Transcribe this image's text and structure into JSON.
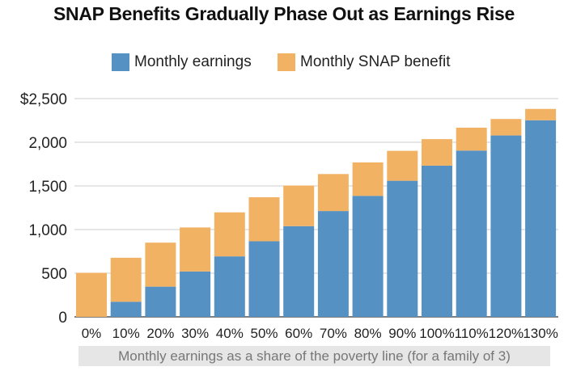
{
  "chart_data": {
    "type": "bar",
    "stacked": true,
    "title": "SNAP Benefits Gradually Phase Out as Earnings Rise",
    "xlabel": "Monthly earnings as a share of the poverty line (for a family of 3)",
    "ylabel": "",
    "categories": [
      "0%",
      "10%",
      "20%",
      "30%",
      "40%",
      "50%",
      "60%",
      "70%",
      "80%",
      "90%",
      "100%",
      "110%",
      "120%",
      "130%"
    ],
    "series": [
      {
        "name": "Monthly earnings",
        "color": "#5591c3",
        "values": [
          0,
          173,
          346,
          520,
          693,
          866,
          1039,
          1212,
          1386,
          1559,
          1732,
          1905,
          2078,
          2252
        ]
      },
      {
        "name": "Monthly SNAP benefit",
        "color": "#f2b264",
        "values": [
          504,
          504,
          504,
          504,
          504,
          504,
          465,
          424,
          383,
          343,
          304,
          262,
          189,
          130
        ]
      }
    ],
    "ylim": [
      0,
      2500
    ],
    "yticks": [
      0,
      500,
      1000,
      1500,
      2000,
      2500
    ],
    "ytick_labels": [
      "0",
      "500",
      "1,000",
      "1,500",
      "2,000",
      "$2,500"
    ],
    "grid": true,
    "legend": "top"
  }
}
